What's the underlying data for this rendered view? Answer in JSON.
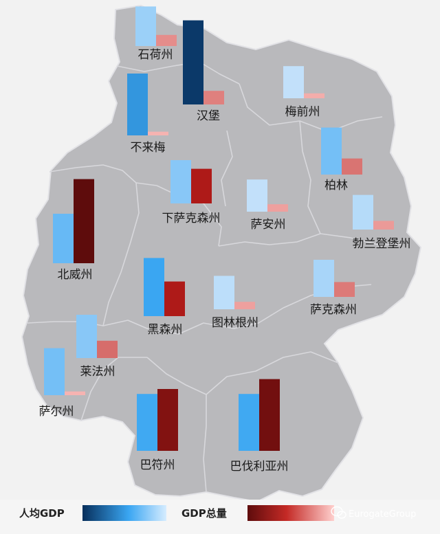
{
  "chart_data": {
    "type": "bar",
    "title": "",
    "series": [
      {
        "name": "人均GDP",
        "key": "per_capita"
      },
      {
        "name": "GDP总量",
        "key": "total"
      }
    ],
    "states": [
      {
        "name": "石荷州",
        "per_capita": 32,
        "total": 9
      },
      {
        "name": "汉堡",
        "per_capita": 68,
        "total": 11
      },
      {
        "name": "梅前州",
        "per_capita": 26,
        "total": 4
      },
      {
        "name": "不来梅",
        "per_capita": 50,
        "total": 3
      },
      {
        "name": "柏林",
        "per_capita": 38,
        "total": 13
      },
      {
        "name": "下萨克森州",
        "per_capita": 35,
        "total": 28
      },
      {
        "name": "萨安州",
        "per_capita": 26,
        "total": 6
      },
      {
        "name": "勃兰登堡州",
        "per_capita": 28,
        "total": 7
      },
      {
        "name": "北威州",
        "per_capita": 40,
        "total": 68
      },
      {
        "name": "黑森州",
        "per_capita": 47,
        "total": 28
      },
      {
        "name": "图林根州",
        "per_capita": 27,
        "total": 6
      },
      {
        "name": "萨克森州",
        "per_capita": 30,
        "total": 12
      },
      {
        "name": "莱法州",
        "per_capita": 35,
        "total": 14
      },
      {
        "name": "萨尔州",
        "per_capita": 38,
        "total": 3
      },
      {
        "name": "巴符州",
        "per_capita": 46,
        "total": 50
      },
      {
        "name": "巴伐利亚州",
        "per_capita": 46,
        "total": 58
      }
    ]
  },
  "legend": {
    "per_capita_label": "人均GDP",
    "total_label": "GDP总量"
  },
  "watermark": {
    "text": "EurogateGroup",
    "icon": "wechat-icon"
  },
  "colors": {
    "background": "#f2f2f2",
    "map_fill": "#b9b9bc",
    "border": "#d8d8dc",
    "per_capita_low": "#cfe6fb",
    "per_capita_mid": "#3aa6f2",
    "per_capita_high": "#072f5c",
    "total_low": "#ffc6c4",
    "total_mid": "#b01a18",
    "total_high": "#5e0c0c"
  }
}
